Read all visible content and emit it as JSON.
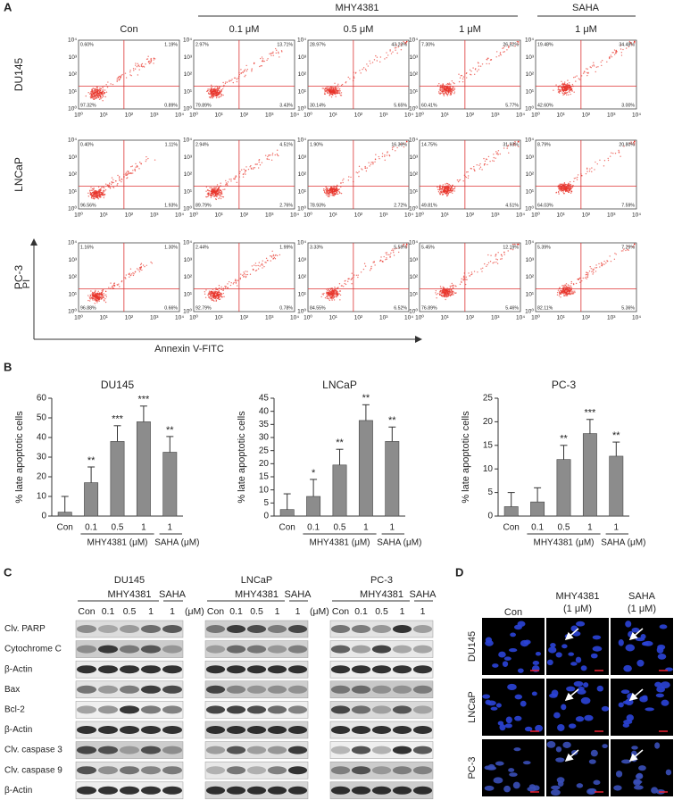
{
  "panel_a": {
    "label": "A",
    "columns": [
      "Con",
      "0.1 μM",
      "0.5 μM",
      "1 μM",
      "1 μM"
    ],
    "group_headers": [
      "MHY4381",
      "SAHA"
    ],
    "rows": [
      "DU145",
      "LNCaP",
      "PC-3"
    ],
    "axis_ticks": [
      "10⁰",
      "10¹",
      "10²",
      "10³",
      "10⁴"
    ],
    "y_axis_label": "PI",
    "x_axis_label": "Annexin V-FITC",
    "quadrants": [
      [
        [
          "0.60%",
          "1.19%",
          "97.32%",
          "0.89%"
        ],
        [
          "2.97%",
          "13.71%",
          "79.89%",
          "3.43%"
        ],
        [
          "28.97%",
          "43.23%",
          "30.14%",
          "5.65%"
        ],
        [
          "7.30%",
          "26.52%",
          "60.41%",
          "5.77%"
        ],
        [
          "19.48%",
          "34.48%",
          "42.60%",
          "3.00%"
        ]
      ],
      [
        [
          "0.40%",
          "1.11%",
          "96.56%",
          "1.93%"
        ],
        [
          "2.94%",
          "4.51%",
          "89.79%",
          "2.76%"
        ],
        [
          "1.90%",
          "16.39%",
          "78.93%",
          "2.72%"
        ],
        [
          "14.75%",
          "31.93%",
          "49.81%",
          "4.51%"
        ],
        [
          "8.79%",
          "20.80%",
          "64.03%",
          "7.59%"
        ]
      ],
      [
        [
          "1.16%",
          "1.30%",
          "96.88%",
          "0.66%"
        ],
        [
          "2.44%",
          "1.99%",
          "92.79%",
          "0.78%"
        ],
        [
          "3.33%",
          "5.59%",
          "84.55%",
          "6.52%"
        ],
        [
          "5.45%",
          "12.19%",
          "76.89%",
          "5.46%"
        ],
        [
          "5.39%",
          "7.29%",
          "82.11%",
          "5.36%"
        ]
      ]
    ]
  },
  "panel_b": {
    "label": "B"
  },
  "chart_data": [
    {
      "type": "bar",
      "title": "DU145",
      "y_label": "% late apoptotic cells",
      "color": "#8c8c8c",
      "categories": [
        "Con",
        "0.1",
        "0.5",
        "1",
        "1"
      ],
      "group_labels": [
        "MHY4381 (μM)",
        "SAHA (μM)"
      ],
      "values": [
        2,
        17,
        38,
        48,
        32.5
      ],
      "errors": [
        8,
        8,
        8,
        8,
        8
      ],
      "annotations": [
        null,
        "**",
        "***",
        "***",
        "**"
      ],
      "ylim": [
        0,
        60
      ],
      "yticks": [
        0,
        10,
        20,
        30,
        40,
        50,
        60
      ]
    },
    {
      "type": "bar",
      "title": "LNCaP",
      "y_label": "% late apoptotic cells",
      "color": "#8c8c8c",
      "categories": [
        "Con",
        "0.1",
        "0.5",
        "1",
        "1"
      ],
      "group_labels": [
        "MHY4381 (μM)",
        "SAHA (μM)"
      ],
      "values": [
        2.5,
        7.5,
        19.5,
        36.5,
        28.5
      ],
      "errors": [
        6,
        6.5,
        6,
        6,
        5.5
      ],
      "annotations": [
        null,
        "*",
        "**",
        "**",
        "**"
      ],
      "ylim": [
        0,
        45
      ],
      "yticks": [
        0,
        5,
        10,
        15,
        20,
        25,
        30,
        35,
        40,
        45
      ]
    },
    {
      "type": "bar",
      "title": "PC-3",
      "y_label": "% late apoptotic cells",
      "color": "#8c8c8c",
      "categories": [
        "Con",
        "0.1",
        "0.5",
        "1",
        "1"
      ],
      "group_labels": [
        "MHY4381 (μM)",
        "SAHA (μM)"
      ],
      "values": [
        2,
        3,
        12,
        17.5,
        12.7
      ],
      "errors": [
        3,
        3,
        3,
        3,
        3
      ],
      "annotations": [
        null,
        null,
        "**",
        "***",
        "**"
      ],
      "ylim": [
        0,
        25
      ],
      "yticks": [
        0,
        5,
        10,
        15,
        20,
        25
      ]
    }
  ],
  "panel_c": {
    "label": "C",
    "blots": [
      {
        "cell": "DU145",
        "group": "MHY4381",
        "control": "SAHA",
        "lanes": [
          "Con",
          "0.1",
          "0.5",
          "1",
          "1"
        ],
        "unit": "(μM)"
      },
      {
        "cell": "LNCaP",
        "group": "MHY4381",
        "control": "SAHA",
        "lanes": [
          "Con",
          "0.1",
          "0.5",
          "1",
          "1"
        ],
        "unit": "(μM)"
      },
      {
        "cell": "PC-3",
        "group": "MHY4381",
        "control": "SAHA",
        "lanes": [
          "Con",
          "0.1",
          "0.5",
          "1",
          "1"
        ]
      }
    ],
    "proteins": [
      "Clv. PARP",
      "Cytochrome C",
      "β-Actin",
      "Bax",
      "Bcl-2",
      "β-Actin",
      "Clv. caspase 3",
      "Clv. caspase 9",
      "β-Actin"
    ]
  },
  "panel_d": {
    "label": "D",
    "columns": [
      {
        "lines": [
          "Con"
        ]
      },
      {
        "lines": [
          "MHY4381",
          "(1 μM)"
        ]
      },
      {
        "lines": [
          "SAHA",
          "(1 μM)"
        ]
      }
    ],
    "rows": [
      "DU145",
      "LNCaP",
      "PC-3"
    ]
  }
}
